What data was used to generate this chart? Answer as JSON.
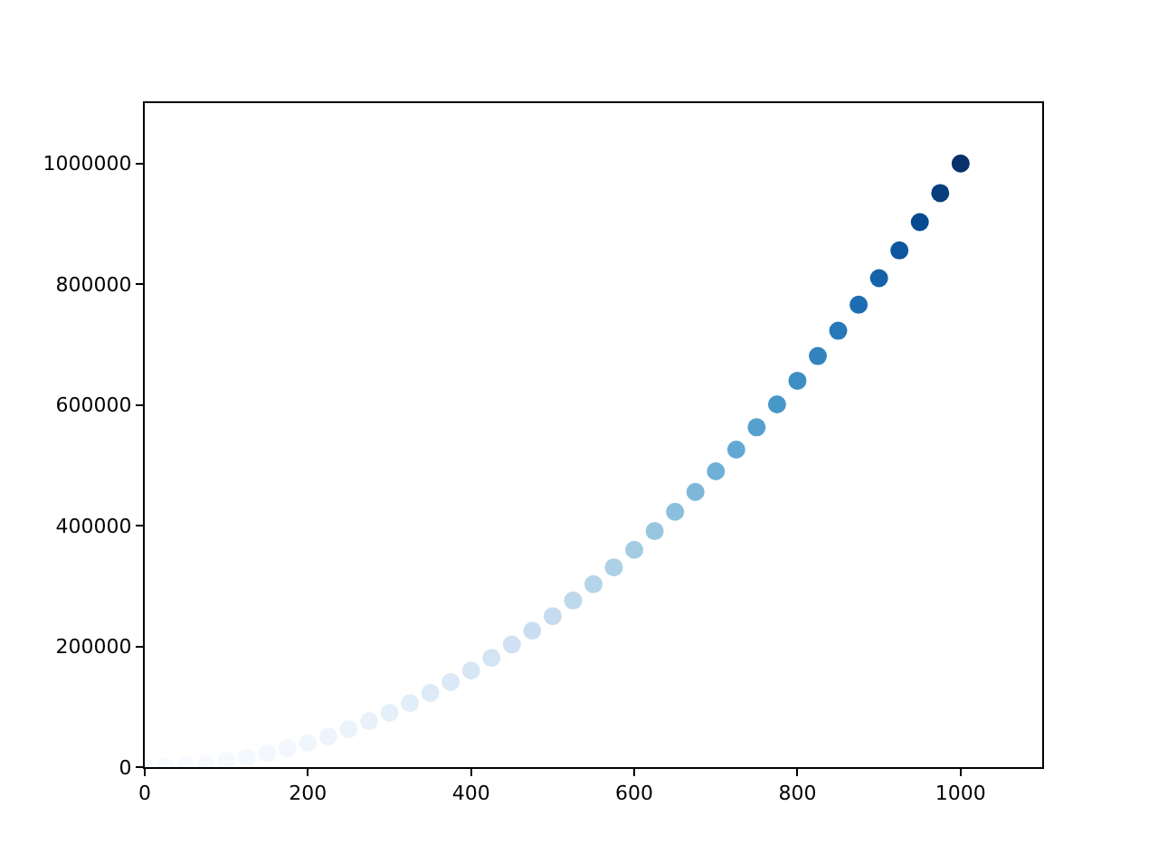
{
  "chart_data": {
    "type": "scatter",
    "x": [
      0,
      25,
      50,
      75,
      100,
      125,
      150,
      175,
      200,
      225,
      250,
      275,
      300,
      325,
      350,
      375,
      400,
      425,
      450,
      475,
      500,
      525,
      550,
      575,
      600,
      625,
      650,
      675,
      700,
      725,
      750,
      775,
      800,
      825,
      850,
      875,
      900,
      925,
      950,
      975,
      1000
    ],
    "values": [
      0,
      1000,
      3000,
      6000,
      10000,
      16000,
      23000,
      31000,
      40000,
      51000,
      63000,
      76000,
      90000,
      106000,
      123000,
      141000,
      160000,
      181000,
      203000,
      226000,
      250000,
      276000,
      303000,
      331000,
      360000,
      391000,
      423000,
      456000,
      490000,
      526000,
      563000,
      601000,
      640000,
      681000,
      723000,
      766000,
      810000,
      856000,
      903000,
      951000,
      1000000
    ],
    "colors": [
      "#f7fbff",
      "#f7fbff",
      "#f7fbff",
      "#f6faff",
      "#f5f9fe",
      "#f4f9fe",
      "#f3f8fe",
      "#f1f7fd",
      "#eff6fc",
      "#edf4fc",
      "#ebf3fb",
      "#e8f1fa",
      "#e5eff9",
      "#e1edf8",
      "#deebf7",
      "#dbe9f6",
      "#d7e6f5",
      "#d3e4f3",
      "#cfe1f2",
      "#cbdef1",
      "#c6dbef",
      "#bed8ec",
      "#b5d4e9",
      "#acd0e6",
      "#a3cce3",
      "#98c6e0",
      "#8bbfdd",
      "#7db8da",
      "#6fb0d7",
      "#63a8d3",
      "#56a0ce",
      "#4897c9",
      "#3e8ec4",
      "#3383be",
      "#2878b9",
      "#1e6db2",
      "#1562a9",
      "#0c56a0",
      "#084a91",
      "#083d7e",
      "#08306b"
    ],
    "xlim": [
      0,
      1100
    ],
    "xticks": [
      0,
      200,
      400,
      600,
      800,
      1000
    ],
    "ylim": [
      0,
      1100000
    ],
    "yticks": [
      0,
      200000,
      400000,
      600000,
      800000,
      1000000
    ],
    "marker": "circle"
  }
}
